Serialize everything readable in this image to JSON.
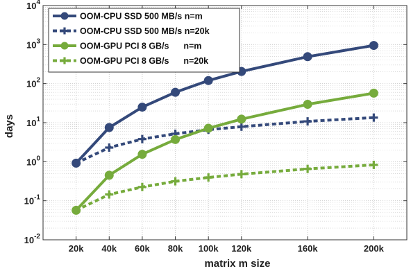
{
  "chart_data": {
    "type": "line",
    "xlabel": "matrix m size",
    "ylabel": "days",
    "yscale": "log",
    "ylim": [
      0.01,
      10000
    ],
    "xlim": [
      0,
      220
    ],
    "x": [
      20,
      40,
      60,
      80,
      100,
      120,
      160,
      200
    ],
    "x_tick_labels": [
      "20k",
      "40k",
      "60k",
      "80k",
      "100k",
      "120k",
      "160k",
      "200k"
    ],
    "y_ticks": [
      {
        "base": "10",
        "exp": "-2"
      },
      {
        "base": "10",
        "exp": "-1"
      },
      {
        "base": "10",
        "exp": "0"
      },
      {
        "base": "10",
        "exp": "1"
      },
      {
        "base": "10",
        "exp": "2"
      },
      {
        "base": "10",
        "exp": "3"
      },
      {
        "base": "10",
        "exp": "4"
      }
    ],
    "grid": true,
    "legend_position": "top-left",
    "series": [
      {
        "name": "OOM-CPU SSD 500 MB/s n=m",
        "color": "#34497a",
        "style": "solid",
        "marker": "circle",
        "values": [
          0.92,
          7.5,
          25,
          60,
          120,
          205,
          490,
          950
        ]
      },
      {
        "name": "OOM-CPU SSD 500 MB/s n=20k",
        "color": "#34497a",
        "style": "dotted",
        "marker": "plus",
        "values": [
          0.92,
          2.3,
          3.8,
          5.2,
          6.6,
          7.9,
          10.8,
          13.5
        ]
      },
      {
        "name": "OOM-GPU PCI 8 GB/s      n=m",
        "color": "#76ab3c",
        "style": "solid",
        "marker": "circle",
        "values": [
          0.057,
          0.45,
          1.55,
          3.7,
          7.2,
          12.3,
          29.5,
          57
        ]
      },
      {
        "name": "OOM-GPU PCI 8 GB/s      n=20k",
        "color": "#76ab3c",
        "style": "dotted",
        "marker": "plus",
        "values": [
          0.057,
          0.145,
          0.225,
          0.315,
          0.395,
          0.48,
          0.655,
          0.83
        ]
      }
    ]
  }
}
